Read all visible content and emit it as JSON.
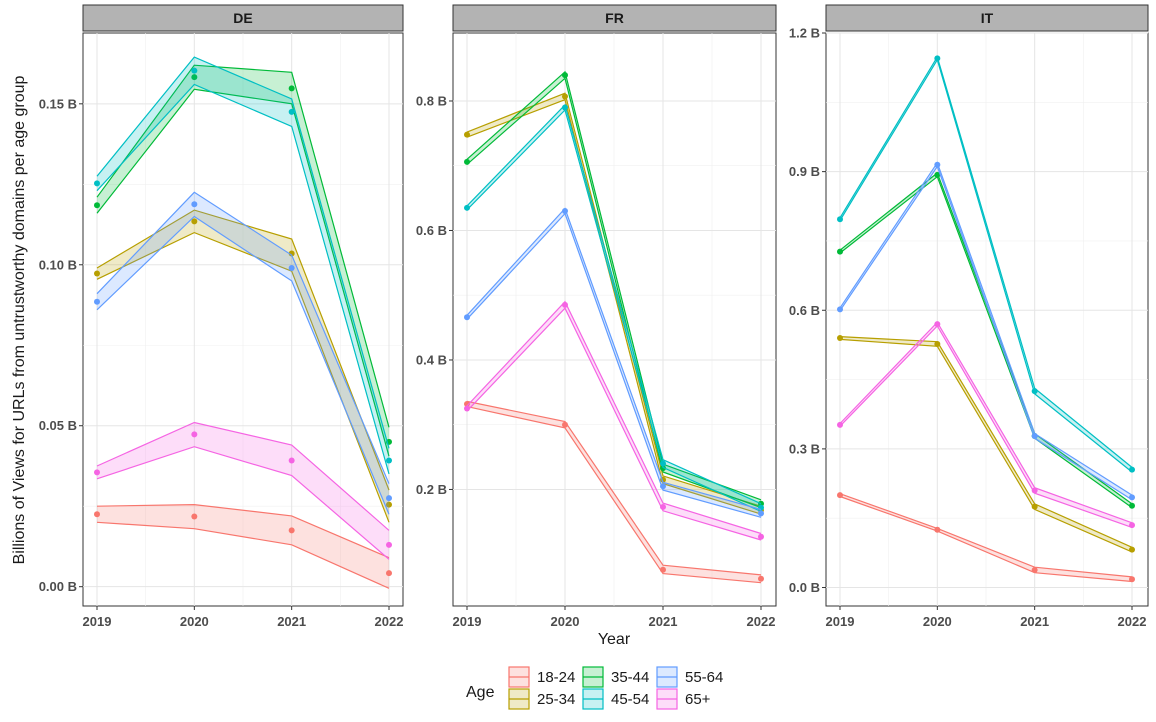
{
  "chart_data": {
    "type": "line",
    "ylabel": "Billions of Views for URLs from untrustworthy domains per age group",
    "xlabel": "Year",
    "grid": true,
    "legend": {
      "title": "Age",
      "placement": "bottom",
      "entries": [
        {
          "name": "18-24",
          "color": "#F8766D"
        },
        {
          "name": "25-34",
          "color": "#B79F00"
        },
        {
          "name": "35-44",
          "color": "#00BA38"
        },
        {
          "name": "45-54",
          "color": "#00BFC4"
        },
        {
          "name": "55-64",
          "color": "#619CFF"
        },
        {
          "name": "65+",
          "color": "#F564E3"
        }
      ]
    },
    "panels": [
      {
        "title": "DE",
        "x": [
          "2019",
          "2020",
          "2021",
          "2022"
        ],
        "yticks": [
          0.0,
          0.05,
          0.1,
          0.15
        ],
        "ytick_labels": [
          "0.00 B",
          "0.05 B",
          "0.10 B",
          "0.15 B"
        ],
        "ylim": [
          -0.006,
          0.172
        ],
        "series": [
          {
            "name": "18-24",
            "values": [
              0.0225,
              0.0218,
              0.0175,
              0.0042
            ],
            "lower": [
              0.02,
              0.018,
              0.013,
              -0.0005
            ],
            "upper": [
              0.025,
              0.0255,
              0.022,
              0.009
            ]
          },
          {
            "name": "25-34",
            "values": [
              0.0973,
              0.1135,
              0.1035,
              0.0255
            ],
            "lower": [
              0.0955,
              0.11,
              0.098,
              0.02
            ],
            "upper": [
              0.099,
              0.117,
              0.108,
              0.03
            ]
          },
          {
            "name": "35-44",
            "values": [
              0.1185,
              0.1583,
              0.1548,
              0.045
            ],
            "lower": [
              0.116,
              0.1545,
              0.15,
              0.0405
            ],
            "upper": [
              0.121,
              0.162,
              0.1598,
              0.0495
            ]
          },
          {
            "name": "45-54",
            "values": [
              0.1253,
              0.1603,
              0.1475,
              0.0392
            ],
            "lower": [
              0.123,
              0.156,
              0.143,
              0.035
            ],
            "upper": [
              0.1275,
              0.1645,
              0.1515,
              0.043
            ]
          },
          {
            "name": "55-64",
            "values": [
              0.0885,
              0.1188,
              0.099,
              0.0275
            ],
            "lower": [
              0.086,
              0.115,
              0.095,
              0.0225
            ],
            "upper": [
              0.091,
              0.1225,
              0.103,
              0.032
            ]
          },
          {
            "name": "65+",
            "values": [
              0.0355,
              0.0473,
              0.0392,
              0.013
            ],
            "lower": [
              0.0335,
              0.0435,
              0.0345,
              0.0085
            ],
            "upper": [
              0.0375,
              0.051,
              0.044,
              0.0175
            ]
          }
        ]
      },
      {
        "title": "FR",
        "x": [
          "2019",
          "2020",
          "2021",
          "2022"
        ],
        "yticks": [
          0.2,
          0.4,
          0.6,
          0.8
        ],
        "ytick_labels": [
          "0.2 B",
          "0.4 B",
          "0.6 B",
          "0.8 B"
        ],
        "ylim": [
          0.02,
          0.905
        ],
        "series": [
          {
            "name": "18-24",
            "values": [
              0.332,
              0.3,
              0.076,
              0.062
            ],
            "lower": [
              0.328,
              0.295,
              0.07,
              0.056
            ],
            "upper": [
              0.336,
              0.305,
              0.083,
              0.068
            ]
          },
          {
            "name": "25-34",
            "values": [
              0.748,
              0.807,
              0.215,
              0.168
            ],
            "lower": [
              0.744,
              0.802,
              0.209,
              0.162
            ],
            "upper": [
              0.752,
              0.812,
              0.221,
              0.174
            ]
          },
          {
            "name": "35-44",
            "values": [
              0.706,
              0.84,
              0.233,
              0.178
            ],
            "lower": [
              0.702,
              0.835,
              0.227,
              0.172
            ],
            "upper": [
              0.71,
              0.845,
              0.239,
              0.184
            ]
          },
          {
            "name": "45-54",
            "values": [
              0.635,
              0.79,
              0.24,
              0.172
            ],
            "lower": [
              0.632,
              0.786,
              0.234,
              0.166
            ],
            "upper": [
              0.638,
              0.794,
              0.246,
              0.178
            ]
          },
          {
            "name": "55-64",
            "values": [
              0.466,
              0.63,
              0.205,
              0.163
            ],
            "lower": [
              0.463,
              0.626,
              0.199,
              0.157
            ],
            "upper": [
              0.469,
              0.634,
              0.211,
              0.169
            ]
          },
          {
            "name": "65+",
            "values": [
              0.325,
              0.485,
              0.173,
              0.127
            ],
            "lower": [
              0.321,
              0.48,
              0.167,
              0.122
            ],
            "upper": [
              0.329,
              0.49,
              0.179,
              0.132
            ]
          }
        ]
      },
      {
        "title": "IT",
        "x": [
          "2019",
          "2020",
          "2021",
          "2022"
        ],
        "yticks": [
          0.0,
          0.3,
          0.6,
          0.9,
          1.2
        ],
        "ytick_labels": [
          "0.0 B",
          "0.3 B",
          "0.6 B",
          "0.9 B",
          "1.2 B"
        ],
        "ylim": [
          -0.04,
          1.2
        ],
        "series": [
          {
            "name": "18-24",
            "values": [
              0.2,
              0.125,
              0.038,
              0.018
            ],
            "lower": [
              0.197,
              0.122,
              0.032,
              0.013
            ],
            "upper": [
              0.203,
              0.128,
              0.044,
              0.023
            ]
          },
          {
            "name": "25-34",
            "values": [
              0.54,
              0.527,
              0.175,
              0.082
            ],
            "lower": [
              0.537,
              0.522,
              0.169,
              0.077
            ],
            "upper": [
              0.543,
              0.532,
              0.181,
              0.087
            ]
          },
          {
            "name": "35-44",
            "values": [
              0.727,
              0.893,
              0.328,
              0.177
            ],
            "lower": [
              0.724,
              0.889,
              0.323,
              0.173
            ],
            "upper": [
              0.73,
              0.897,
              0.333,
              0.181
            ]
          },
          {
            "name": "45-54",
            "values": [
              0.797,
              1.145,
              0.425,
              0.255
            ],
            "lower": [
              0.794,
              1.142,
              0.419,
              0.25
            ],
            "upper": [
              0.8,
              1.148,
              0.431,
              0.26
            ]
          },
          {
            "name": "55-64",
            "values": [
              0.602,
              0.915,
              0.328,
              0.195
            ],
            "lower": [
              0.599,
              0.911,
              0.323,
              0.19
            ],
            "upper": [
              0.605,
              0.919,
              0.333,
              0.2
            ]
          },
          {
            "name": "65+",
            "values": [
              0.352,
              0.57,
              0.21,
              0.135
            ],
            "lower": [
              0.349,
              0.566,
              0.204,
              0.13
            ],
            "upper": [
              0.355,
              0.574,
              0.216,
              0.14
            ]
          }
        ]
      }
    ]
  }
}
